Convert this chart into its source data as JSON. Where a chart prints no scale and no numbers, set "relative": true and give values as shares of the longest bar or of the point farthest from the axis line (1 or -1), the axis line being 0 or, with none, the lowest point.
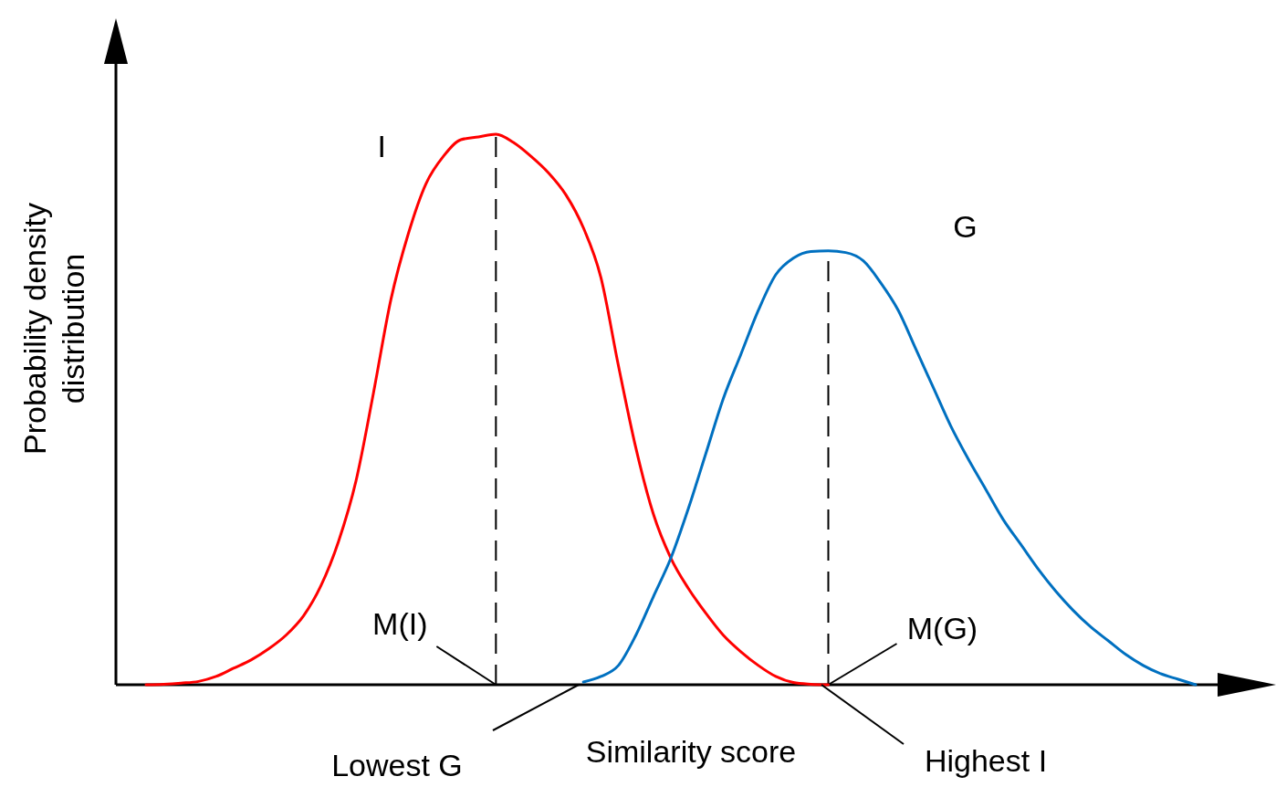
{
  "chart_data": {
    "type": "line",
    "relative": true,
    "xlabel": "Similarity score",
    "ylabel": "Probability density distribution",
    "categories": [
      null,
      null,
      null,
      null,
      null,
      null,
      null,
      null,
      null,
      null,
      null,
      null,
      null,
      null,
      null,
      null,
      null,
      null,
      null,
      null,
      null,
      null,
      null,
      null,
      null,
      null,
      null,
      null,
      null,
      null,
      null,
      null,
      null,
      null,
      null,
      null,
      null,
      null,
      null,
      null,
      null,
      null,
      null,
      null,
      null,
      null,
      null,
      null,
      null,
      null,
      null,
      null,
      null,
      null,
      null,
      null,
      null,
      null,
      null,
      null,
      null
    ],
    "series": [
      {
        "name": "I",
        "color": "#ff0000",
        "values": [
          0,
          0.001,
          0.003,
          0.006,
          0.015,
          0.03,
          0.045,
          0.065,
          0.09,
          0.125,
          0.18,
          0.26,
          0.37,
          0.53,
          0.7,
          0.82,
          0.91,
          0.96,
          0.99,
          0.995,
          1,
          0.985,
          0.96,
          0.93,
          0.89,
          0.83,
          0.74,
          0.58,
          0.43,
          0.31,
          0.23,
          0.175,
          0.13,
          0.09,
          0.06,
          0.035,
          0.015,
          0.004,
          0.001,
          0,
          null,
          null,
          null,
          null,
          null,
          null,
          null,
          null,
          null,
          null,
          null,
          null,
          null,
          null,
          null,
          null,
          null,
          null,
          null,
          null,
          null
        ]
      },
      {
        "name": "G",
        "color": "#0070c0",
        "values": [
          null,
          null,
          null,
          null,
          null,
          null,
          null,
          null,
          null,
          null,
          null,
          null,
          null,
          null,
          null,
          null,
          null,
          null,
          null,
          null,
          null,
          null,
          null,
          null,
          null,
          0.005,
          0.015,
          0.035,
          0.09,
          0.16,
          0.23,
          0.32,
          0.42,
          0.52,
          0.6,
          0.68,
          0.745,
          0.775,
          0.787,
          0.788,
          0.785,
          0.77,
          0.73,
          0.68,
          0.61,
          0.54,
          0.47,
          0.41,
          0.355,
          0.3,
          0.255,
          0.21,
          0.17,
          0.135,
          0.105,
          0.08,
          0.055,
          0.035,
          0.02,
          0.01,
          0
        ]
      }
    ],
    "annotations": [
      "M(I)",
      "M(G)",
      "Lowest G",
      "Highest I"
    ],
    "line_style": "solid",
    "marker": "none"
  }
}
